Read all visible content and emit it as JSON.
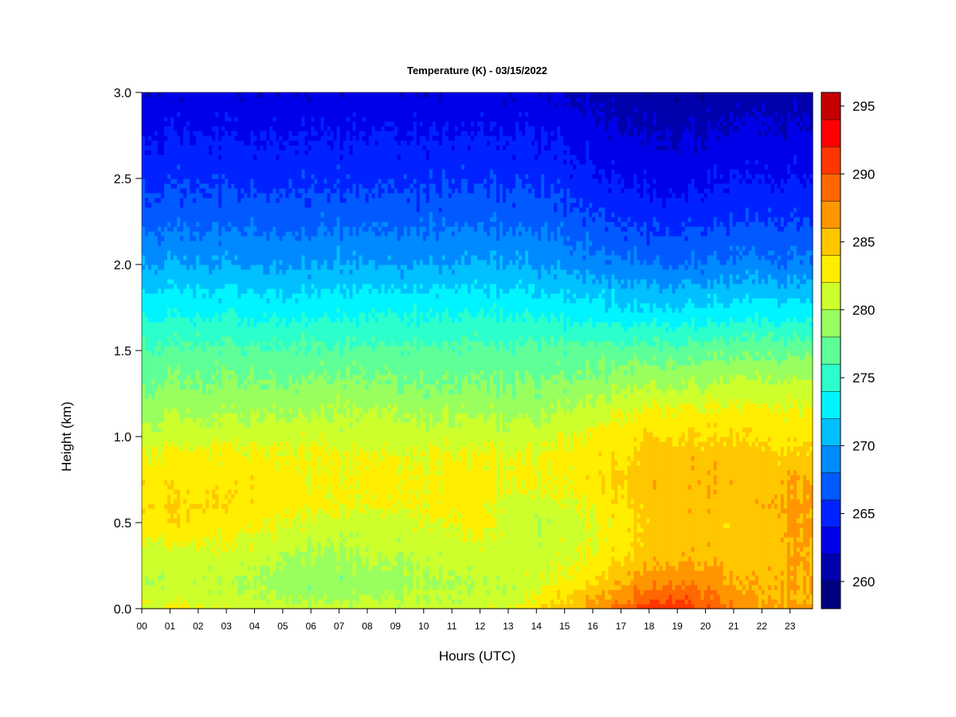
{
  "chart_data": {
    "type": "heatmap",
    "title": "Temperature (K) - 03/15/2022",
    "xlabel": "Hours (UTC)",
    "ylabel": "Height (km)",
    "xlim": [
      0,
      23.8
    ],
    "ylim": [
      0,
      3.0
    ],
    "x_ticks": [
      "00",
      "01",
      "02",
      "03",
      "04",
      "05",
      "06",
      "07",
      "08",
      "09",
      "10",
      "11",
      "12",
      "13",
      "14",
      "15",
      "16",
      "17",
      "18",
      "19",
      "20",
      "21",
      "22",
      "23"
    ],
    "y_ticks": [
      "0.0",
      "0.5",
      "1.0",
      "1.5",
      "2.0",
      "2.5",
      "3.0"
    ],
    "colorbar": {
      "label": "",
      "range": [
        258,
        296
      ],
      "levels": [
        258,
        260,
        262,
        264,
        266,
        268,
        270,
        272,
        274,
        276,
        278,
        280,
        282,
        284,
        286,
        288,
        290,
        292,
        294,
        296
      ],
      "tick_labels": [
        "260",
        "265",
        "270",
        "275",
        "280",
        "285",
        "290",
        "295"
      ],
      "tick_values": [
        260,
        265,
        270,
        275,
        280,
        285,
        290,
        295
      ],
      "colors": [
        "#00007f",
        "#0000ac",
        "#0000e8",
        "#0022ff",
        "#005aff",
        "#008aff",
        "#00c0ff",
        "#00f4ff",
        "#2cffcb",
        "#5fff98",
        "#98ff5f",
        "#ccff2c",
        "#ffee00",
        "#ffc700",
        "#ff9600",
        "#ff6800",
        "#ff3600",
        "#ff0000",
        "#c40000",
        "#800000"
      ],
      "position": "right"
    },
    "profiles": {
      "heights_km": [
        0.0,
        0.05,
        0.15,
        0.3,
        0.5,
        0.6,
        0.75,
        0.9,
        1.0,
        1.15,
        1.3,
        1.5,
        1.7,
        1.85,
        2.0,
        2.25,
        2.5,
        2.75,
        3.0
      ],
      "hours": [
        0,
        2,
        4,
        6,
        8,
        10,
        12,
        13,
        14,
        15,
        16,
        17,
        18,
        19,
        20,
        21,
        22,
        23,
        23.8
      ],
      "temperature_K": [
        [
          282.5,
          282.0,
          280.5,
          281.0,
          283.5,
          284.0,
          283.5,
          282.5,
          281.0,
          279.5,
          278.0,
          276.5,
          274.0,
          272.0,
          270.0,
          267.5,
          265.5,
          264.0,
          262.5
        ],
        [
          282.0,
          281.0,
          280.5,
          281.0,
          283.5,
          284.0,
          283.0,
          282.5,
          281.0,
          279.5,
          278.0,
          276.5,
          274.0,
          272.0,
          270.0,
          267.5,
          265.5,
          264.0,
          262.5
        ],
        [
          281.0,
          280.5,
          280.0,
          281.0,
          282.5,
          283.5,
          283.5,
          282.5,
          281.5,
          280.0,
          278.5,
          276.5,
          274.0,
          272.0,
          270.0,
          267.5,
          265.5,
          264.0,
          262.5
        ],
        [
          281.0,
          280.0,
          278.5,
          279.5,
          281.5,
          282.5,
          282.5,
          282.5,
          281.5,
          280.0,
          278.5,
          276.5,
          274.0,
          272.0,
          270.0,
          267.5,
          265.5,
          264.0,
          262.5
        ],
        [
          281.0,
          280.0,
          278.5,
          280.0,
          281.0,
          282.0,
          282.5,
          282.0,
          281.0,
          280.0,
          278.5,
          276.5,
          274.0,
          272.0,
          270.0,
          267.5,
          265.5,
          264.0,
          262.5
        ],
        [
          281.0,
          280.5,
          280.0,
          280.5,
          281.5,
          282.5,
          282.5,
          282.0,
          281.0,
          279.5,
          278.0,
          276.5,
          274.0,
          272.0,
          270.0,
          267.5,
          265.5,
          264.0,
          262.5
        ],
        [
          281.0,
          280.5,
          280.0,
          281.0,
          282.5,
          282.5,
          282.5,
          282.0,
          281.0,
          279.5,
          278.0,
          276.5,
          274.0,
          272.0,
          270.0,
          267.5,
          265.5,
          264.0,
          262.5
        ],
        [
          282.0,
          281.0,
          280.5,
          281.0,
          281.0,
          281.0,
          282.5,
          282.0,
          281.0,
          279.5,
          278.0,
          276.5,
          274.0,
          272.0,
          270.0,
          267.5,
          265.5,
          264.0,
          262.5
        ],
        [
          283.5,
          282.5,
          281.5,
          281.0,
          280.5,
          281.0,
          282.5,
          282.0,
          281.0,
          279.5,
          278.0,
          276.5,
          274.0,
          272.0,
          270.0,
          267.5,
          265.5,
          264.0,
          262.5
        ],
        [
          285.5,
          284.0,
          282.5,
          281.5,
          281.0,
          281.5,
          282.5,
          282.5,
          281.5,
          280.0,
          278.5,
          276.5,
          273.5,
          271.5,
          269.5,
          267.0,
          265.0,
          263.5,
          262.0
        ],
        [
          287.5,
          286.0,
          284.0,
          282.5,
          282.0,
          282.5,
          283.5,
          283.5,
          282.5,
          281.0,
          279.0,
          277.0,
          273.5,
          271.5,
          269.0,
          266.5,
          264.5,
          263.0,
          261.5
        ],
        [
          289.0,
          287.5,
          286.0,
          284.0,
          283.0,
          284.0,
          284.5,
          283.5,
          283.0,
          282.0,
          279.5,
          277.0,
          273.0,
          271.0,
          268.5,
          266.0,
          264.0,
          262.5,
          261.0
        ],
        [
          291.0,
          289.5,
          287.5,
          285.0,
          284.5,
          285.0,
          285.5,
          285.0,
          284.0,
          282.5,
          280.0,
          277.0,
          273.0,
          270.5,
          268.0,
          265.5,
          263.5,
          262.0,
          260.5
        ],
        [
          291.5,
          290.5,
          288.0,
          285.5,
          285.0,
          285.5,
          285.5,
          285.0,
          284.0,
          282.5,
          280.0,
          277.0,
          273.0,
          270.5,
          268.0,
          265.5,
          263.5,
          262.0,
          260.5
        ],
        [
          290.0,
          289.0,
          287.5,
          285.5,
          285.0,
          285.5,
          285.5,
          285.0,
          284.0,
          282.5,
          280.0,
          277.0,
          273.0,
          270.5,
          268.0,
          265.5,
          263.5,
          262.0,
          260.5
        ],
        [
          287.5,
          287.0,
          286.0,
          285.0,
          284.5,
          285.0,
          285.5,
          285.0,
          284.0,
          282.5,
          280.5,
          277.5,
          273.5,
          271.0,
          268.5,
          266.0,
          264.0,
          262.5,
          261.0
        ],
        [
          286.5,
          286.0,
          285.5,
          285.0,
          285.0,
          285.5,
          285.0,
          284.5,
          283.5,
          282.5,
          280.5,
          277.5,
          273.5,
          271.0,
          268.5,
          266.0,
          264.0,
          262.5,
          261.0
        ],
        [
          286.5,
          286.0,
          286.0,
          286.0,
          286.5,
          286.5,
          286.0,
          284.5,
          283.5,
          282.5,
          280.5,
          277.5,
          273.5,
          271.0,
          268.5,
          266.0,
          264.0,
          262.5,
          261.0
        ],
        [
          286.5,
          286.0,
          286.0,
          286.0,
          286.5,
          286.5,
          286.0,
          284.5,
          283.5,
          282.5,
          280.5,
          277.5,
          273.5,
          271.0,
          268.5,
          266.0,
          264.0,
          262.5,
          261.0
        ]
      ]
    }
  }
}
